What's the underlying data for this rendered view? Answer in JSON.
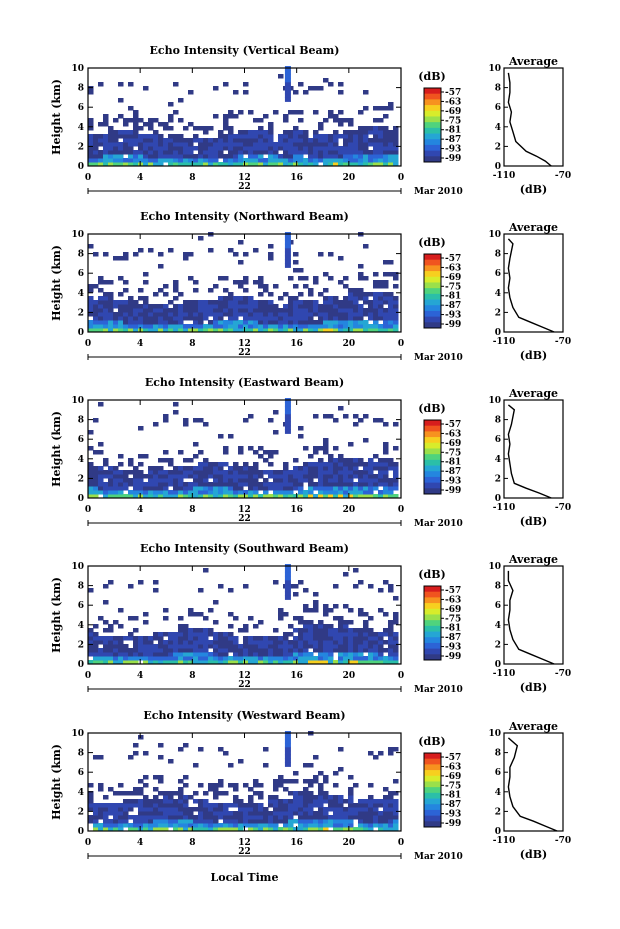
{
  "colorbar": {
    "unit": "(dB)",
    "ticks": [
      "-57",
      "-63",
      "-69",
      "-75",
      "-81",
      "-87",
      "-93",
      "-99"
    ],
    "colors": [
      "#d71d1d",
      "#f0541f",
      "#f7921f",
      "#f7cf1f",
      "#d8ec2b",
      "#9be04a",
      "#4fd37d",
      "#2bbfa8",
      "#25a6d4",
      "#2486df",
      "#2c63d6",
      "#3047b0",
      "#303a86"
    ]
  },
  "profile": {
    "title": "Average",
    "xlabel": "(dB)",
    "x_ticks": [
      "-110",
      "-70"
    ]
  },
  "shared": {
    "ylabel": "Height (km)",
    "y_ticks": [
      "0",
      "2",
      "4",
      "6",
      "8",
      "10"
    ],
    "x_ticks": [
      "0",
      "4",
      "8",
      "12",
      "16",
      "20",
      "0"
    ],
    "date_day": "22",
    "date_month": "Mar 2010",
    "xlabel": "Local Time"
  },
  "chart_data": [
    {
      "type": "heatmap",
      "title": "Echo Intensity (Vertical Beam)",
      "xlim": [
        0,
        24
      ],
      "ylim": [
        0,
        10
      ],
      "color_range_db": [
        -99,
        -57
      ],
      "profile": {
        "type": "line",
        "xlim": [
          -110,
          -70
        ],
        "ylim": [
          0,
          10
        ],
        "x": [
          -78,
          -82,
          -88,
          -95,
          -102,
          -104,
          -106,
          -105,
          -107,
          -106,
          -106,
          -107
        ],
        "y": [
          0,
          0.5,
          1,
          1.5,
          2.5,
          3.5,
          4.5,
          5.5,
          6.5,
          7.5,
          8.5,
          9.5
        ]
      }
    },
    {
      "type": "heatmap",
      "title": "Echo Intensity (Northward Beam)",
      "xlim": [
        0,
        24
      ],
      "ylim": [
        0,
        10
      ],
      "color_range_db": [
        -99,
        -57
      ],
      "profile": {
        "type": "line",
        "xlim": [
          -110,
          -70
        ],
        "ylim": [
          0,
          10
        ],
        "x": [
          -76,
          -84,
          -92,
          -100,
          -104,
          -106,
          -107,
          -106,
          -107,
          -106,
          -104,
          -107
        ],
        "y": [
          0,
          0.5,
          1,
          1.5,
          2.5,
          3.5,
          4.5,
          5.5,
          6.5,
          7.5,
          9,
          9.5
        ]
      }
    },
    {
      "type": "heatmap",
      "title": "Echo Intensity (Eastward Beam)",
      "xlim": [
        0,
        24
      ],
      "ylim": [
        0,
        10
      ],
      "color_range_db": [
        -99,
        -57
      ],
      "profile": {
        "type": "line",
        "xlim": [
          -110,
          -70
        ],
        "ylim": [
          0,
          10
        ],
        "x": [
          -78,
          -86,
          -95,
          -103,
          -105,
          -106,
          -107,
          -106,
          -107,
          -105,
          -103,
          -107
        ],
        "y": [
          0,
          0.5,
          1,
          1.5,
          2.5,
          3.5,
          4.5,
          5.5,
          6.5,
          7.5,
          9,
          9.5
        ]
      }
    },
    {
      "type": "heatmap",
      "title": "Echo Intensity (Southward Beam)",
      "xlim": [
        0,
        24
      ],
      "ylim": [
        0,
        10
      ],
      "color_range_db": [
        -99,
        -57
      ],
      "profile": {
        "type": "line",
        "xlim": [
          -110,
          -70
        ],
        "ylim": [
          0,
          10
        ],
        "x": [
          -76,
          -84,
          -92,
          -100,
          -104,
          -106,
          -107,
          -106,
          -106,
          -104,
          -107,
          -107
        ],
        "y": [
          0,
          0.5,
          1,
          1.5,
          2.5,
          3.5,
          4.5,
          5.5,
          6.5,
          7.5,
          8.5,
          9.5
        ]
      }
    },
    {
      "type": "heatmap",
      "title": "Echo Intensity (Westward Beam)",
      "xlim": [
        0,
        24
      ],
      "ylim": [
        0,
        10
      ],
      "color_range_db": [
        -99,
        -57
      ],
      "profile": {
        "type": "line",
        "xlim": [
          -110,
          -70
        ],
        "ylim": [
          0,
          10
        ],
        "x": [
          -74,
          -82,
          -90,
          -99,
          -104,
          -106,
          -107,
          -106,
          -106,
          -103,
          -101,
          -107
        ],
        "y": [
          0,
          0.5,
          1,
          1.5,
          2.5,
          3.5,
          4.5,
          5.5,
          6.5,
          7.5,
          8.7,
          9.5
        ]
      }
    }
  ]
}
